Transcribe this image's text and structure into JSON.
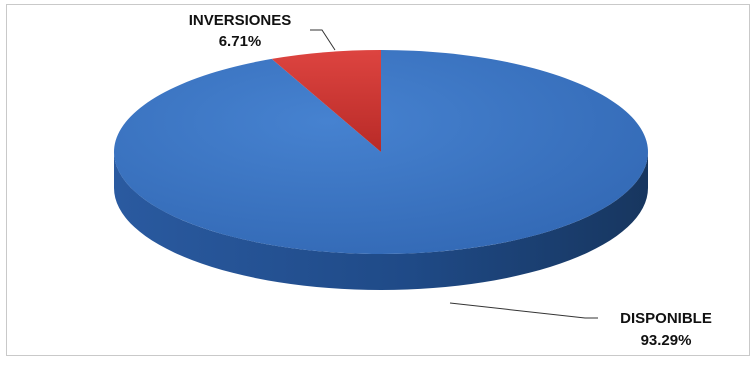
{
  "chart_data": {
    "type": "pie",
    "three_d": true,
    "title": "",
    "legend": "none",
    "slices": [
      {
        "name": "DISPONIBLE",
        "value": 93.29,
        "label": "93.29%",
        "color": "#3a74c4"
      },
      {
        "name": "INVERSIONES",
        "value": 6.71,
        "label": "6.71%",
        "color": "#d33a35"
      }
    ]
  }
}
